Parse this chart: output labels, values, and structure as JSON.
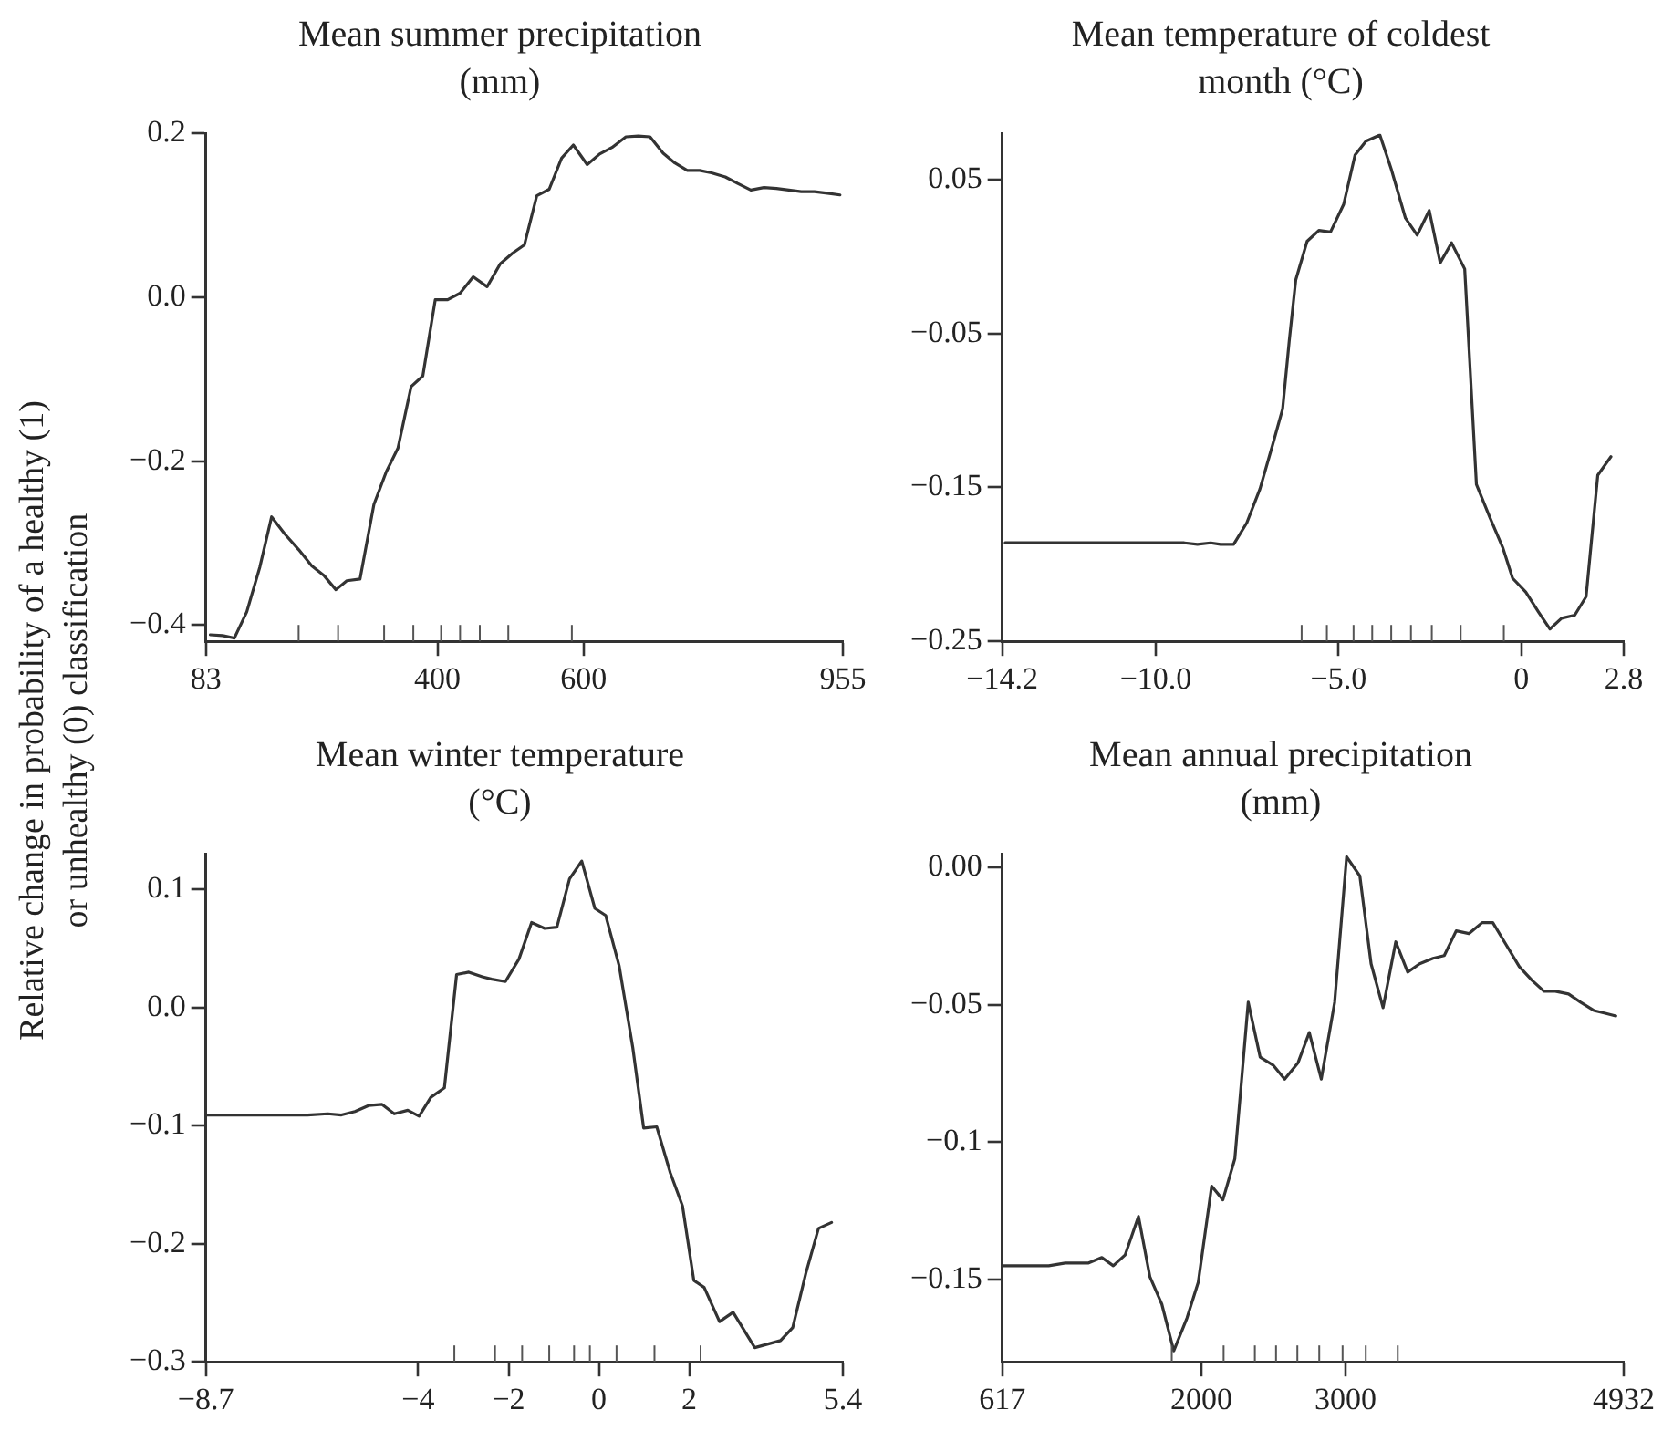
{
  "chart_data": [
    {
      "type": "line",
      "title": "Mean summer precipitation\n(mm)",
      "ylabel": "Relative change in probability of a healthy (1)\nor unhealthy (0) classification",
      "x": [
        89,
        106,
        122,
        139,
        157,
        173,
        191,
        210,
        228,
        245,
        261,
        276,
        294,
        313,
        330,
        346,
        364,
        380,
        397,
        414,
        431,
        449,
        468,
        486,
        503,
        519,
        536,
        553,
        570,
        586,
        605,
        622,
        639,
        658,
        675,
        691,
        709,
        725,
        742,
        759,
        775,
        794,
        811,
        829,
        847,
        864,
        881,
        898,
        916,
        934,
        951
      ],
      "values": [
        -0.412,
        -0.413,
        -0.416,
        -0.384,
        -0.329,
        -0.268,
        -0.289,
        -0.308,
        -0.328,
        -0.34,
        -0.357,
        -0.346,
        -0.344,
        -0.253,
        -0.213,
        -0.184,
        -0.109,
        -0.096,
        -0.003,
        -0.003,
        0.005,
        0.025,
        0.013,
        0.041,
        0.054,
        0.064,
        0.124,
        0.132,
        0.17,
        0.186,
        0.162,
        0.175,
        0.183,
        0.196,
        0.197,
        0.196,
        0.176,
        0.164,
        0.155,
        0.155,
        0.152,
        0.147,
        0.139,
        0.131,
        0.134,
        0.133,
        0.131,
        0.129,
        0.129,
        0.127,
        0.125
      ],
      "color": "#333333",
      "xlim": [
        83,
        955
      ],
      "ylim": [
        -0.42,
        0.2
      ],
      "xticks": [
        83,
        {
          "value": 210,
          "label": null
        },
        {
          "value": 264,
          "label": null
        },
        {
          "value": 327,
          "label": null
        },
        {
          "value": 367,
          "label": null
        },
        400,
        {
          "value": 405,
          "label": null
        },
        {
          "value": 431,
          "label": null
        },
        {
          "value": 458,
          "label": null
        },
        {
          "value": 497,
          "label": null
        },
        {
          "value": 584,
          "label": null
        },
        600,
        955
      ],
      "yticks": [
        {
          "value": -0.4,
          "label": "−0.4"
        },
        {
          "value": -0.2,
          "label": "−0.2"
        },
        {
          "value": 0,
          "label": "0.0"
        },
        0.2
      ]
    },
    {
      "type": "line",
      "title": "Mean temperature of coldest\nmonth (°C)",
      "x": [
        -14.12,
        -11.82,
        -9.67,
        -9.22,
        -8.86,
        -8.5,
        -8.23,
        -7.87,
        -7.51,
        -7.15,
        -6.8,
        -6.53,
        -6.35,
        -6.17,
        -5.86,
        -5.54,
        -5.22,
        -4.86,
        -4.55,
        -4.25,
        -3.87,
        -3.56,
        -3.17,
        -2.85,
        -2.52,
        -2.22,
        -1.91,
        -1.55,
        -1.23,
        -0.87,
        -0.51,
        -0.24,
        0.12,
        0.47,
        0.78,
        1.1,
        1.46,
        1.77,
        2.09,
        2.45
      ],
      "values": [
        -0.186,
        -0.186,
        -0.186,
        -0.186,
        -0.187,
        -0.186,
        -0.187,
        -0.187,
        -0.173,
        -0.151,
        -0.122,
        -0.099,
        -0.055,
        -0.015,
        0.01,
        0.017,
        0.016,
        0.034,
        0.066,
        0.075,
        0.079,
        0.057,
        0.025,
        0.014,
        0.03,
        -0.004,
        0.009,
        -0.008,
        -0.148,
        -0.169,
        -0.189,
        -0.209,
        -0.218,
        -0.231,
        -0.242,
        -0.235,
        -0.233,
        -0.221,
        -0.142,
        -0.13
      ],
      "color": "#333333",
      "xlim": [
        -14.2,
        2.8
      ],
      "ylim": [
        -0.25,
        0.08
      ],
      "xticks": [
        {
          "value": -14.2,
          "label": "−14.2"
        },
        {
          "value": -10,
          "label": "−10.0"
        },
        {
          "value": -6.01,
          "label": null
        },
        {
          "value": -5.32,
          "label": null
        },
        {
          "value": -5,
          "label": "−5.0"
        },
        {
          "value": -4.59,
          "label": null
        },
        {
          "value": -4.08,
          "label": null
        },
        {
          "value": -3.56,
          "label": null
        },
        {
          "value": -3.02,
          "label": null
        },
        {
          "value": -2.45,
          "label": null
        },
        {
          "value": -1.66,
          "label": null
        },
        {
          "value": -0.48,
          "label": null
        },
        0,
        2.8
      ],
      "yticks": [
        {
          "value": -0.25,
          "label": "−0.25"
        },
        {
          "value": -0.15,
          "label": "−0.15"
        },
        {
          "value": -0.05,
          "label": "−0.05"
        },
        0.05
      ]
    },
    {
      "type": "line",
      "title": "Mean winter temperature\n(°C)",
      "x": [
        -8.7,
        -7.65,
        -6.45,
        -6.0,
        -5.7,
        -5.4,
        -5.1,
        -4.8,
        -4.53,
        -4.23,
        -3.98,
        -3.72,
        -3.42,
        -3.15,
        -2.88,
        -2.58,
        -2.37,
        -2.07,
        -1.77,
        -1.49,
        -1.2,
        -0.93,
        -0.65,
        -0.38,
        -0.09,
        0.15,
        0.45,
        0.75,
        0.99,
        1.28,
        1.58,
        1.85,
        2.1,
        2.33,
        2.67,
        2.97,
        3.45,
        4.02,
        4.29,
        4.58,
        4.86,
        5.15
      ],
      "values": [
        -0.091,
        -0.091,
        -0.091,
        -0.09,
        -0.091,
        -0.088,
        -0.083,
        -0.082,
        -0.09,
        -0.087,
        -0.092,
        -0.076,
        -0.068,
        0.028,
        0.03,
        0.026,
        0.024,
        0.022,
        0.041,
        0.072,
        0.067,
        0.068,
        0.109,
        0.124,
        0.084,
        0.078,
        0.035,
        -0.034,
        -0.102,
        -0.101,
        -0.14,
        -0.168,
        -0.231,
        -0.237,
        -0.266,
        -0.258,
        -0.288,
        -0.282,
        -0.271,
        -0.225,
        -0.187,
        -0.182
      ],
      "color": "#333333",
      "xlim": [
        -8.7,
        5.4
      ],
      "ylim": [
        -0.3,
        0.13
      ],
      "xticks": [
        {
          "value": -8.7,
          "label": "−8.7"
        },
        {
          "value": -4,
          "label": "−4"
        },
        {
          "value": -3.2,
          "label": null
        },
        {
          "value": -2.3,
          "label": null
        },
        {
          "value": -2,
          "label": "−2"
        },
        {
          "value": -1.7,
          "label": null
        },
        {
          "value": -1.1,
          "label": null
        },
        {
          "value": -0.55,
          "label": null
        },
        {
          "value": -0.2,
          "label": null
        },
        0,
        {
          "value": 0.39,
          "label": null
        },
        {
          "value": 1.23,
          "label": null
        },
        2,
        {
          "value": 2.25,
          "label": null
        },
        5.4
      ],
      "yticks": [
        {
          "value": -0.3,
          "label": "−0.3"
        },
        {
          "value": -0.2,
          "label": "−0.2"
        },
        {
          "value": -0.1,
          "label": "−0.1"
        },
        {
          "value": 0,
          "label": "0.0"
        },
        0.1
      ]
    },
    {
      "type": "line",
      "title": "Mean annual precipitation\n(mm)",
      "x": [
        617,
        940,
        1055,
        1134,
        1217,
        1309,
        1388,
        1471,
        1563,
        1642,
        1725,
        1808,
        1900,
        1978,
        2071,
        2149,
        2232,
        2325,
        2408,
        2500,
        2578,
        2671,
        2749,
        2832,
        2925,
        3008,
        3100,
        3178,
        3261,
        3349,
        3432,
        3515,
        3608,
        3686,
        3769,
        3857,
        3949,
        4023,
        4115,
        4207,
        4295,
        4378,
        4457,
        4549,
        4632,
        4724,
        4803,
        4877
      ],
      "values": [
        -0.145,
        -0.145,
        -0.144,
        -0.144,
        -0.144,
        -0.142,
        -0.145,
        -0.141,
        -0.127,
        -0.149,
        -0.159,
        -0.176,
        -0.164,
        -0.151,
        -0.116,
        -0.121,
        -0.106,
        -0.049,
        -0.069,
        -0.072,
        -0.077,
        -0.071,
        -0.06,
        -0.077,
        -0.049,
        0.004,
        -0.003,
        -0.035,
        -0.051,
        -0.027,
        -0.038,
        -0.035,
        -0.033,
        -0.032,
        -0.023,
        -0.024,
        -0.02,
        -0.02,
        -0.028,
        -0.036,
        -0.041,
        -0.045,
        -0.045,
        -0.046,
        -0.049,
        -0.052,
        -0.053,
        -0.054
      ],
      "color": "#333333",
      "xlim": [
        617,
        4932
      ],
      "ylim": [
        -0.18,
        0.005
      ],
      "xticks": [
        617,
        {
          "value": 1794,
          "label": null
        },
        2000,
        {
          "value": 2154,
          "label": null
        },
        {
          "value": 2371,
          "label": null
        },
        {
          "value": 2518,
          "label": null
        },
        {
          "value": 2666,
          "label": null
        },
        {
          "value": 2818,
          "label": null
        },
        {
          "value": 2980,
          "label": null
        },
        {
          "value": 3141,
          "label": null
        },
        3000,
        {
          "value": 3363,
          "label": null
        },
        4932
      ],
      "yticks": [
        {
          "value": -0.15,
          "label": "−0.15"
        },
        {
          "value": -0.1,
          "label": "−0.1"
        },
        {
          "value": -0.05,
          "label": "−0.05"
        },
        {
          "value": 0,
          "label": "0.00"
        }
      ]
    }
  ]
}
